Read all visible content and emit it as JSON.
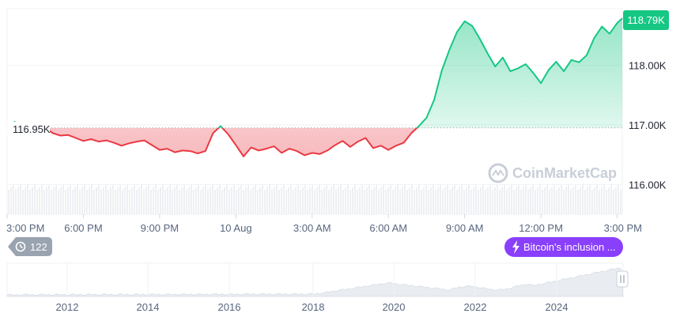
{
  "chart_data": {
    "type": "area",
    "baseline": 116950,
    "baseline_label": "116.95K",
    "current_value_label": "118.79K",
    "ylim": [
      115500,
      118950
    ],
    "y_ticks": [
      {
        "value": 118000,
        "label": "118.00K"
      },
      {
        "value": 117000,
        "label": "117.00K"
      },
      {
        "value": 116000,
        "label": "116.00K"
      }
    ],
    "x_ticks": [
      "3:00 PM",
      "6:00 PM",
      "9:00 PM",
      "10 Aug",
      "3:00 AM",
      "6:00 AM",
      "9:00 AM",
      "12:00 PM",
      "3:00 PM"
    ],
    "x_hours": [
      0,
      0.3,
      0.6,
      0.9,
      1.2,
      1.5,
      1.8,
      2.1,
      2.4,
      2.7,
      3.0,
      3.3,
      3.6,
      3.9,
      4.2,
      4.5,
      4.8,
      5.1,
      5.4,
      5.7,
      6.0,
      6.3,
      6.6,
      6.9,
      7.2,
      7.5,
      7.8,
      8.1,
      8.4,
      8.7,
      9.0,
      9.3,
      9.6,
      9.9,
      10.2,
      10.5,
      10.8,
      11.1,
      11.4,
      11.7,
      12.0,
      12.3,
      12.6,
      12.9,
      13.2,
      13.5,
      13.8,
      14.1,
      14.4,
      14.7,
      15.0,
      15.3,
      15.6,
      15.9,
      16.2,
      16.5,
      16.8,
      17.1,
      17.4,
      17.7,
      18.0,
      18.3,
      18.6,
      18.9,
      19.2,
      19.5,
      19.8,
      20.1,
      20.4,
      20.7,
      21.0,
      21.3,
      21.6,
      21.9,
      22.2,
      22.5,
      22.8,
      23.1,
      23.4,
      23.7,
      24.0,
      24.2
    ],
    "values": [
      117000,
      117050,
      117010,
      116980,
      116960,
      116950,
      116860,
      116820,
      116830,
      116780,
      116730,
      116760,
      116720,
      116740,
      116700,
      116650,
      116690,
      116720,
      116740,
      116660,
      116580,
      116600,
      116540,
      116570,
      116560,
      116520,
      116560,
      116860,
      116980,
      116840,
      116660,
      116470,
      116620,
      116570,
      116600,
      116640,
      116530,
      116600,
      116560,
      116490,
      116530,
      116510,
      116570,
      116660,
      116730,
      116630,
      116720,
      116780,
      116610,
      116650,
      116580,
      116650,
      116700,
      116860,
      116980,
      117120,
      117420,
      117910,
      118260,
      118560,
      118740,
      118660,
      118440,
      118200,
      117980,
      118130,
      117900,
      117950,
      118020,
      117870,
      117700,
      117920,
      118060,
      117900,
      118090,
      118050,
      118170,
      118460,
      118650,
      118530,
      118710,
      118790
    ],
    "volume_label": "volume",
    "event_count": "122",
    "event_label": "Bitcoin's inclusion ...",
    "watermark": "CoinMarketCap",
    "navigator_years": [
      "2012",
      "2014",
      "2016",
      "2018",
      "2020",
      "2022",
      "2024"
    ],
    "colors": {
      "up": "#16c784",
      "down": "#ea3943",
      "badge": "#16c784",
      "event": "#8a3ffc",
      "navigator_fill": "#e9edf2"
    }
  }
}
